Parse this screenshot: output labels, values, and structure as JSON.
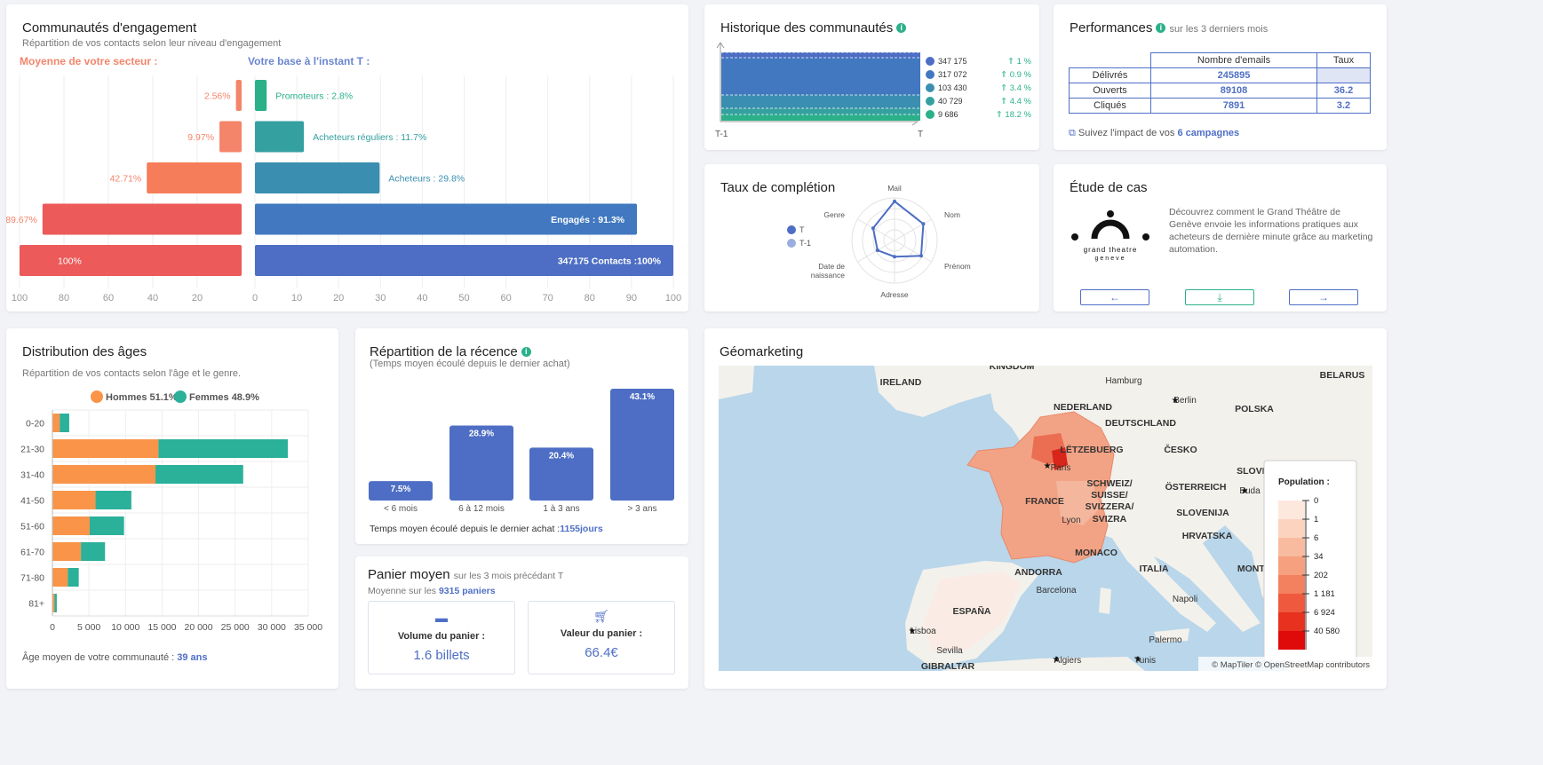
{
  "engagement": {
    "title": "Communautés d'engagement",
    "subtitle": "Répartition de vos contacts selon leur niveau d'engagement",
    "left_header": "Moyenne de votre secteur :",
    "right_header": "Votre base à l'instant T :",
    "rows": [
      {
        "sector": 2.56,
        "sector_label": "2.56%",
        "base": 2.8,
        "base_label": "Promoteurs : 2.8%",
        "color": "#2bb08a"
      },
      {
        "sector": 9.97,
        "sector_label": "9.97%",
        "base": 11.7,
        "base_label": "Acheteurs réguliers : 11.7%",
        "color": "#35a0a0"
      },
      {
        "sector": 42.71,
        "sector_label": "42.71%",
        "base": 29.8,
        "base_label": "Acheteurs : 29.8%",
        "color": "#3a8fb0"
      },
      {
        "sector": 89.67,
        "sector_label": "89.67%",
        "base": 91.3,
        "base_label": "Engagés : 91.3%",
        "color": "#4178c0"
      },
      {
        "sector": 100,
        "sector_label": "100%",
        "base": 100,
        "base_label": "347175 Contacts :100%",
        "color": "#4d6ec4"
      }
    ],
    "left_ticks": [
      "100",
      "80",
      "60",
      "40",
      "20"
    ],
    "right_ticks": [
      "0",
      "10",
      "20",
      "30",
      "40",
      "50",
      "60",
      "70",
      "80",
      "90",
      "100"
    ]
  },
  "history": {
    "title": "Historique des communautés",
    "x_start": "T-1",
    "x_end": "T",
    "items": [
      {
        "value": "347 175",
        "delta": "1 %",
        "color": "#4d6ec4"
      },
      {
        "value": "317 072",
        "delta": "0.9 %",
        "color": "#4178c0"
      },
      {
        "value": "103 430",
        "delta": "3.4 %",
        "color": "#3a8fb0"
      },
      {
        "value": "40 729",
        "delta": "4.4 %",
        "color": "#35a0a0"
      },
      {
        "value": "9 686",
        "delta": "18.2 %",
        "color": "#2bb08a"
      }
    ]
  },
  "performance": {
    "title": "Performances",
    "period": "sur les 3 derniers mois",
    "col_emails": "Nombre d'emails",
    "col_rate": "Taux",
    "rows": [
      {
        "label": "Délivrés",
        "count": "245895",
        "rate": ""
      },
      {
        "label": "Ouverts",
        "count": "89108",
        "rate": "36.2"
      },
      {
        "label": "Cliqués",
        "count": "7891",
        "rate": "3.2"
      }
    ],
    "link_prefix": "Suivez l'impact de vos ",
    "link_campaigns": "6 campagnes"
  },
  "completion": {
    "title": "Taux de complétion",
    "legend_t": "T",
    "legend_t1": "T-1",
    "axes": [
      "Mail",
      "Nom",
      "Prénom",
      "Adresse",
      "Date de naissance",
      "Genre"
    ],
    "axis_date_line1": "Date de",
    "axis_date_line2": "naissance",
    "values_t": [
      0.92,
      0.78,
      0.72,
      0.38,
      0.46,
      0.58
    ]
  },
  "case_study": {
    "title": "Étude de cas",
    "logo_line1": "grand theatre",
    "logo_line2": "geneve",
    "text": "Découvrez comment le Grand Théâtre de Genève envoie les informations pratiques aux acheteurs de dernière minute grâce au marketing automation.",
    "prev": "←",
    "download": "⤓",
    "next": "→"
  },
  "ages": {
    "title": "Distribution des âges",
    "subtitle": "Répartition de vos contacts selon l'âge et le genre.",
    "legend_men": "Hommes 51.1%",
    "legend_women": "Femmes 48.9%",
    "color_men": "#f99448",
    "color_women": "#2bb09a",
    "footer_prefix": "Âge moyen de votre communauté : ",
    "footer_value": "39 ans",
    "chart_data": {
      "type": "bar",
      "orientation": "horizontal-stacked",
      "categories": [
        "0-20",
        "21-30",
        "31-40",
        "41-50",
        "51-60",
        "61-70",
        "71-80",
        "81+"
      ],
      "series": [
        {
          "name": "Hommes 51.1%",
          "values": [
            1000,
            14500,
            14100,
            5900,
            5100,
            3900,
            2100,
            300
          ]
        },
        {
          "name": "Femmes 48.9%",
          "values": [
            1300,
            17700,
            12000,
            4900,
            4700,
            3300,
            1500,
            300
          ]
        }
      ],
      "ticks": [
        "0",
        "5 000",
        "10 000",
        "15 000",
        "20 000",
        "25 000",
        "30 000",
        "35 000"
      ],
      "xlim": [
        0,
        35000
      ]
    }
  },
  "recency": {
    "title": "Répartition de la récence",
    "subtitle": "(Temps moyen écoulé depuis le dernier achat)",
    "footer_prefix": "Temps moyen écoulé depuis le dernier achat :",
    "footer_value": "1155jours",
    "chart_data": {
      "type": "bar",
      "categories": [
        "< 6 mois",
        "6 à 12 mois",
        "1 à 3 ans",
        "> 3 ans"
      ],
      "values": [
        7.5,
        28.9,
        20.4,
        43.1
      ],
      "labels": [
        "7.5%",
        "28.9%",
        "20.4%",
        "43.1%"
      ],
      "ylim": [
        0,
        43.1
      ]
    }
  },
  "basket": {
    "title": "Panier moyen",
    "period": "sur les 3 mois précédant T",
    "avg_prefix": "Moyenne sur les ",
    "avg_value": "9315 paniers",
    "volume_label": "Volume du panier :",
    "volume_value": "1.6 billets",
    "value_label": "Valeur du panier :",
    "value_value": "66.4€"
  },
  "geo": {
    "title": "Géomarketing",
    "places": [
      "KINGDOM",
      "IRELAND",
      "Hamburg",
      "Berlin",
      "BELARUS",
      "NEDERLAND",
      "DEUTSCHLAND",
      "POLSKA",
      "LËTZEBUERG",
      "ČESKO",
      "Paris",
      "SLOVENSK",
      "ÖSTERREICH",
      "Buda",
      "FRANCE",
      "SCHWEIZ/",
      "SUISSE/",
      "SVIZZERA/",
      "SVIZRA",
      "Lyon",
      "SLOVENIJA",
      "HRVATSKA",
      "MONACO",
      "ANDORRA",
      "ITALIA",
      "MONTENEGR",
      "Barcelona",
      "Napoli",
      "ESPAÑA",
      "Lisboa",
      "Palermo",
      "Sevilla",
      "Algiers",
      "Tunis",
      "GIBRALTAR"
    ],
    "legend_title": "Population :",
    "legend_values": [
      "0",
      "1",
      "6",
      "34",
      "202",
      "1 181",
      "6 924",
      "40 580"
    ],
    "legend_colors": [
      "#fde8de",
      "#fbd3bf",
      "#f9bb9f",
      "#f6a07f",
      "#f3805e",
      "#ef5a3e",
      "#e8311f",
      "#df0a0a"
    ],
    "attribution": "© MapTiler © OpenStreetMap contributors"
  }
}
